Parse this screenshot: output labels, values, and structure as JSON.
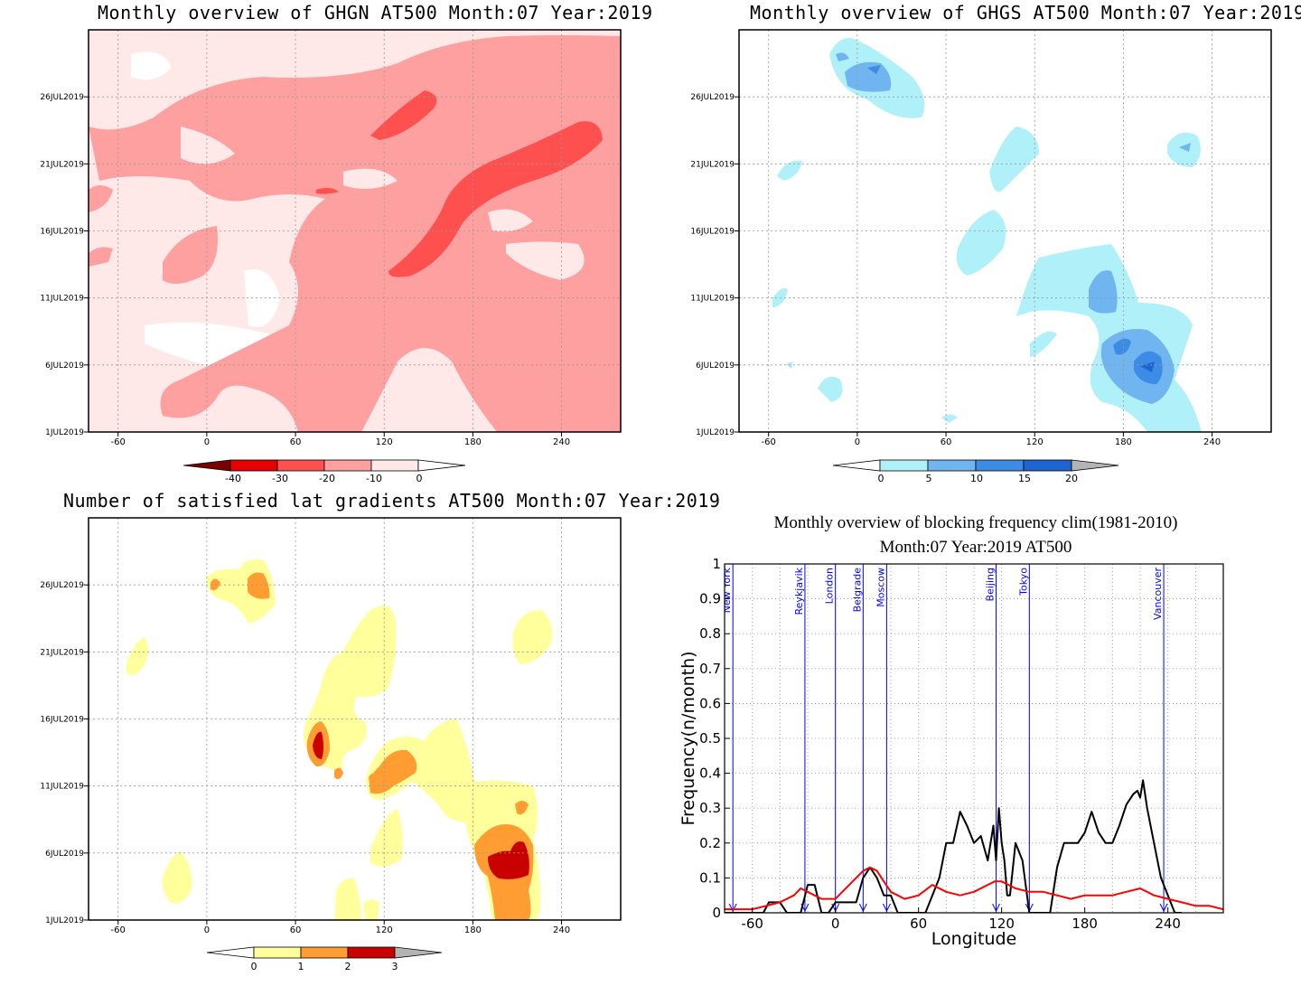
{
  "panels": {
    "ghgn": {
      "title": "Monthly overview of GHGN AT500 Month:07 Year:2019",
      "yticks": [
        "1JUL2019",
        "6JUL2019",
        "11JUL2019",
        "16JUL2019",
        "21JUL2019",
        "26JUL2019"
      ],
      "xticks": [
        "-60",
        "0",
        "60",
        "120",
        "180",
        "240"
      ],
      "colorbar": {
        "labels": [
          "-40",
          "-30",
          "-20",
          "-10",
          "0"
        ],
        "colors": [
          "#7a0000",
          "#e60000",
          "#ff5050",
          "#ffa0a0",
          "#ffe8e8"
        ]
      }
    },
    "ghgs": {
      "title": "Monthly overview of GHGS AT500 Month:07 Year:2019",
      "yticks": [
        "1JUL2019",
        "6JUL2019",
        "11JUL2019",
        "16JUL2019",
        "21JUL2019",
        "26JUL2019"
      ],
      "xticks": [
        "-60",
        "0",
        "60",
        "120",
        "180",
        "240"
      ],
      "colorbar": {
        "labels": [
          "0",
          "5",
          "10",
          "15",
          "20"
        ],
        "colors": [
          "#ffffff",
          "#b0f0f8",
          "#70b4f0",
          "#3c8ce6",
          "#1e64d2",
          "#b4b4b4"
        ]
      }
    },
    "gradients": {
      "title": "Number of satisfied lat gradients AT500 Month:07 Year:2019",
      "yticks": [
        "1JUL2019",
        "6JUL2019",
        "11JUL2019",
        "16JUL2019",
        "21JUL2019",
        "26JUL2019"
      ],
      "xticks": [
        "-60",
        "0",
        "60",
        "120",
        "180",
        "240"
      ],
      "colorbar": {
        "labels": [
          "0",
          "1",
          "2",
          "3"
        ],
        "colors": [
          "#ffffff",
          "#ffff9c",
          "#ff9c32",
          "#c80000",
          "#b4b4b4"
        ]
      }
    },
    "blocking": {
      "title_line1": "Monthly overview of blocking frequency clim(1981-2010)",
      "title_line2": "Month:07 Year:2019  AT500",
      "xlabel": "Longitude",
      "ylabel": "Frequency(n/month)",
      "xticks": [
        "-60",
        "0",
        "60",
        "120",
        "180",
        "240"
      ],
      "yticks": [
        "0",
        "0.1",
        "0.2",
        "0.3",
        "0.4",
        "0.5",
        "0.6",
        "0.7",
        "0.8",
        "0.9",
        "1"
      ],
      "cities": [
        "New York",
        "Reykjavik",
        "London",
        "Belgrade",
        "Moscow",
        "Beijing",
        "Tokyo",
        "Vancouver"
      ]
    }
  },
  "chart_data": [
    {
      "type": "heatmap",
      "title": "Monthly overview of GHGN AT500 Month:07 Year:2019",
      "x_range": [
        -80,
        280
      ],
      "y_range": [
        "1JUL2019",
        "31JUL2019"
      ],
      "levels": [
        -40,
        -30,
        -20,
        -10,
        0
      ],
      "colors": [
        "#7a0000",
        "#e60000",
        "#ff5050",
        "#ffa0a0",
        "#ffe8e8"
      ],
      "note_level_regions": "mostly -10 to 0 (light pink) and -20 to -10 (pink) with bands of -30 to -20 near 120-260E on 14-23JUL"
    },
    {
      "type": "heatmap",
      "title": "Monthly overview of GHGS AT500 Month:07 Year:2019",
      "x_range": [
        -80,
        280
      ],
      "y_range": [
        "1JUL2019",
        "31JUL2019"
      ],
      "levels": [
        0,
        5,
        10,
        15,
        20
      ],
      "colors": [
        "#ffffff",
        "#b0f0f8",
        "#70b4f0",
        "#3c8ce6",
        "#1e64d2",
        "#b4b4b4"
      ]
    },
    {
      "type": "heatmap",
      "title": "Number of satisfied lat gradients AT500 Month:07 Year:2019",
      "x_range": [
        -80,
        280
      ],
      "y_range": [
        "1JUL2019",
        "31JUL2019"
      ],
      "levels": [
        0,
        1,
        2,
        3
      ],
      "colors": [
        "#ffffff",
        "#ffff9c",
        "#ff9c32",
        "#c80000",
        "#b4b4b4"
      ]
    },
    {
      "type": "line",
      "title": "Monthly overview of blocking frequency clim(1981-2010)",
      "subtitle": "Month:07 Year:2019  AT500",
      "xlabel": "Longitude",
      "ylabel": "Frequency(n/month)",
      "xlim": [
        -80,
        280
      ],
      "ylim": [
        0,
        1
      ],
      "series": [
        {
          "color": "#000000",
          "x": [
            -80,
            -60,
            -52,
            -48,
            -40,
            -35,
            -30,
            -25,
            -20,
            -15,
            -10,
            -5,
            0,
            5,
            10,
            15,
            20,
            25,
            30,
            35,
            40,
            45,
            50,
            55,
            60,
            65,
            70,
            75,
            80,
            85,
            90,
            95,
            100,
            105,
            110,
            112,
            114,
            116,
            118,
            120,
            122,
            124,
            126,
            130,
            135,
            140,
            145,
            150,
            155,
            160,
            165,
            170,
            175,
            180,
            185,
            190,
            195,
            200,
            205,
            210,
            215,
            218,
            220,
            222,
            225,
            230,
            235,
            240,
            245,
            250
          ],
          "y": [
            0,
            0,
            0,
            0.03,
            0.03,
            0,
            0,
            0,
            0.08,
            0.08,
            0,
            0,
            0.03,
            0.03,
            0.03,
            0.03,
            0.1,
            0.13,
            0.1,
            0.05,
            0.05,
            0,
            0,
            0,
            0,
            0,
            0.05,
            0.1,
            0.2,
            0.2,
            0.29,
            0.25,
            0.2,
            0.22,
            0.15,
            0.2,
            0.25,
            0.15,
            0.3,
            0.2,
            0.15,
            0.05,
            0.05,
            0.2,
            0.15,
            0,
            0,
            0,
            0,
            0.13,
            0.2,
            0.2,
            0.2,
            0.23,
            0.29,
            0.23,
            0.2,
            0.2,
            0.25,
            0.31,
            0.34,
            0.35,
            0.33,
            0.38,
            0.3,
            0.2,
            0.1,
            0.05,
            0,
            0
          ]
        },
        {
          "color": "#ff0000",
          "x": [
            -80,
            -60,
            -50,
            -40,
            -30,
            -25,
            -20,
            -10,
            0,
            10,
            20,
            25,
            30,
            35,
            40,
            50,
            60,
            70,
            80,
            90,
            100,
            110,
            115,
            120,
            125,
            130,
            140,
            150,
            160,
            170,
            180,
            190,
            200,
            210,
            220,
            230,
            240,
            250,
            260,
            270,
            280
          ],
          "y": [
            0.01,
            0.01,
            0.02,
            0.03,
            0.05,
            0.07,
            0.06,
            0.04,
            0.04,
            0.08,
            0.12,
            0.13,
            0.12,
            0.09,
            0.06,
            0.04,
            0.05,
            0.08,
            0.06,
            0.05,
            0.06,
            0.08,
            0.09,
            0.09,
            0.08,
            0.07,
            0.06,
            0.06,
            0.05,
            0.04,
            0.05,
            0.05,
            0.05,
            0.06,
            0.07,
            0.05,
            0.04,
            0.03,
            0.02,
            0.02,
            0.01
          ]
        }
      ],
      "vertical_lines": [
        {
          "label": "New York",
          "x": -74
        },
        {
          "label": "Reykjavik",
          "x": -22
        },
        {
          "label": "London",
          "x": 0
        },
        {
          "label": "Belgrade",
          "x": 20
        },
        {
          "label": "Moscow",
          "x": 37
        },
        {
          "label": "Beijing",
          "x": 116
        },
        {
          "label": "Tokyo",
          "x": 140
        },
        {
          "label": "Vancouver",
          "x": 237
        }
      ]
    }
  ]
}
